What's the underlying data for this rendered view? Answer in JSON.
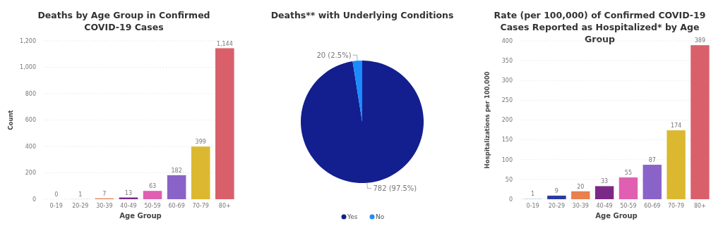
{
  "chart_data": [
    {
      "type": "bar",
      "title": "Deaths by Age Group in Confirmed COVID-19 Cases",
      "xlabel": "Age Group",
      "ylabel": "Count",
      "categories": [
        "0-19",
        "20-29",
        "30-39",
        "40-49",
        "50-59",
        "60-69",
        "70-79",
        "80+"
      ],
      "values": [
        0,
        1,
        7,
        13,
        63,
        182,
        399,
        1144
      ],
      "colors": [
        "#8ab4f8",
        "#b4a7d6",
        "#e8835a",
        "#7b2a8a",
        "#e05fb0",
        "#8a63c8",
        "#dbb82f",
        "#d9606a"
      ],
      "ylim": [
        0,
        1200
      ],
      "yticks": [
        0,
        {
          "value": 200,
          "label": "200"
        },
        {
          "value": 400,
          "label": "400"
        },
        {
          "value": 600,
          "label": "600"
        },
        {
          "value": 800,
          "label": "800"
        },
        {
          "value": 1000,
          "label": "1,000"
        },
        {
          "value": 1200,
          "label": "1,200"
        }
      ],
      "value_labels": [
        "0",
        "1",
        "7",
        "13",
        "63",
        "182",
        "399",
        "1,144"
      ],
      "grid": "y"
    },
    {
      "type": "pie",
      "title": "Deaths** with Underlying Conditions",
      "categories": [
        "Yes",
        "No"
      ],
      "values": [
        782,
        20
      ],
      "colors": [
        "#131f8e",
        "#1a8cff"
      ],
      "value_labels": [
        "782 (97.5%)",
        "20 (2.5%)"
      ],
      "legend": "bottom"
    },
    {
      "type": "bar",
      "title": "Rate (per 100,000) of Confirmed COVID-19 Cases Reported as Hospitalized* by Age Group",
      "xlabel": "Age Group",
      "ylabel": "Hospitalizations per 100,000",
      "categories": [
        "0-19",
        "20-29",
        "30-39",
        "40-49",
        "50-59",
        "60-69",
        "70-79",
        "80+"
      ],
      "values": [
        1,
        9,
        20,
        33,
        55,
        87,
        174,
        389
      ],
      "colors": [
        "#9cc8f0",
        "#2a3aa0",
        "#e8804f",
        "#7a2a86",
        "#e05fb0",
        "#8a63c8",
        "#dbb82f",
        "#d9606a"
      ],
      "ylim": [
        0,
        400
      ],
      "yticks": [
        0,
        50,
        100,
        150,
        200,
        250,
        300,
        350,
        400
      ],
      "data_labels": true,
      "grid": "y"
    }
  ]
}
